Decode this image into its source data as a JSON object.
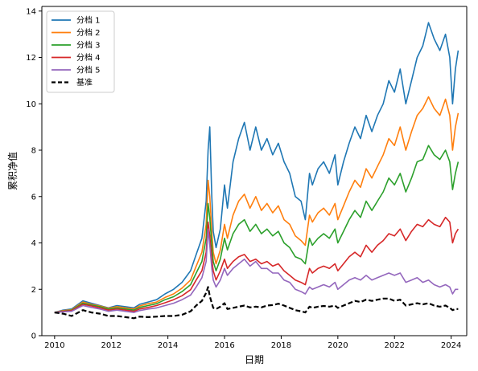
{
  "chart_data": {
    "type": "line",
    "title": "",
    "xlabel": "日期",
    "ylabel": "累积净值",
    "xlim": [
      2009.55,
      2024.55
    ],
    "ylim": [
      0,
      14.2
    ],
    "xticks": [
      2010,
      2012,
      2014,
      2016,
      2018,
      2020,
      2022,
      2024
    ],
    "xtick_labels": [
      "2010",
      "2012",
      "2014",
      "2016",
      "2018",
      "2020",
      "2022",
      "2024"
    ],
    "yticks": [
      0,
      2,
      4,
      6,
      8,
      10,
      12,
      14
    ],
    "ytick_labels": [
      "0",
      "2",
      "4",
      "6",
      "8",
      "10",
      "12",
      "14"
    ],
    "legend": {
      "position": "upper-left"
    },
    "series": [
      {
        "name": "分档 1",
        "color": "#1f77b4",
        "style": "solid",
        "x": [
          2010.0,
          2010.3,
          2010.6,
          2011.0,
          2011.3,
          2011.6,
          2011.9,
          2012.2,
          2012.5,
          2012.8,
          2013.0,
          2013.3,
          2013.6,
          2013.9,
          2014.2,
          2014.5,
          2014.8,
          2015.0,
          2015.2,
          2015.35,
          2015.42,
          2015.48,
          2015.55,
          2015.6,
          2015.7,
          2015.85,
          2016.0,
          2016.1,
          2016.3,
          2016.5,
          2016.7,
          2016.9,
          2017.1,
          2017.3,
          2017.5,
          2017.7,
          2017.9,
          2018.1,
          2018.3,
          2018.5,
          2018.7,
          2018.85,
          2019.0,
          2019.1,
          2019.3,
          2019.5,
          2019.7,
          2019.9,
          2020.0,
          2020.2,
          2020.4,
          2020.6,
          2020.8,
          2021.0,
          2021.2,
          2021.4,
          2021.6,
          2021.8,
          2022.0,
          2022.2,
          2022.4,
          2022.6,
          2022.8,
          2023.0,
          2023.2,
          2023.4,
          2023.6,
          2023.8,
          2023.95,
          2024.05,
          2024.15,
          2024.25
        ],
        "values": [
          1.0,
          1.1,
          1.15,
          1.5,
          1.4,
          1.3,
          1.2,
          1.3,
          1.25,
          1.2,
          1.35,
          1.45,
          1.55,
          1.8,
          2.0,
          2.3,
          2.8,
          3.5,
          4.2,
          5.8,
          8.0,
          9.0,
          6.0,
          4.5,
          3.8,
          4.6,
          6.5,
          5.5,
          7.5,
          8.5,
          9.2,
          8.0,
          9.0,
          8.0,
          8.5,
          7.8,
          8.3,
          7.5,
          7.0,
          6.0,
          5.8,
          5.0,
          7.0,
          6.5,
          7.2,
          7.5,
          7.0,
          7.8,
          6.5,
          7.5,
          8.3,
          9.0,
          8.5,
          9.5,
          8.8,
          9.5,
          10.0,
          11.0,
          10.5,
          11.5,
          10.0,
          11.0,
          12.0,
          12.5,
          13.5,
          12.8,
          12.3,
          13.0,
          12.0,
          10.0,
          11.5,
          12.3
        ]
      },
      {
        "name": "分档 2",
        "color": "#ff7f0e",
        "style": "solid",
        "x": [
          2010.0,
          2010.3,
          2010.6,
          2011.0,
          2011.3,
          2011.6,
          2011.9,
          2012.2,
          2012.5,
          2012.8,
          2013.0,
          2013.3,
          2013.6,
          2013.9,
          2014.2,
          2014.5,
          2014.8,
          2015.0,
          2015.2,
          2015.35,
          2015.42,
          2015.48,
          2015.55,
          2015.6,
          2015.7,
          2015.85,
          2016.0,
          2016.1,
          2016.3,
          2016.5,
          2016.7,
          2016.9,
          2017.1,
          2017.3,
          2017.5,
          2017.7,
          2017.9,
          2018.1,
          2018.3,
          2018.5,
          2018.7,
          2018.85,
          2019.0,
          2019.1,
          2019.3,
          2019.5,
          2019.7,
          2019.9,
          2020.0,
          2020.2,
          2020.4,
          2020.6,
          2020.8,
          2021.0,
          2021.2,
          2021.4,
          2021.6,
          2021.8,
          2022.0,
          2022.2,
          2022.4,
          2022.6,
          2022.8,
          2023.0,
          2023.2,
          2023.4,
          2023.6,
          2023.8,
          2023.95,
          2024.05,
          2024.15,
          2024.25
        ],
        "values": [
          1.0,
          1.08,
          1.12,
          1.45,
          1.35,
          1.28,
          1.18,
          1.25,
          1.2,
          1.15,
          1.28,
          1.38,
          1.45,
          1.65,
          1.8,
          2.05,
          2.4,
          3.0,
          3.6,
          4.8,
          6.7,
          6.0,
          4.5,
          3.6,
          3.1,
          3.7,
          4.8,
          4.2,
          5.2,
          5.8,
          6.1,
          5.5,
          6.0,
          5.4,
          5.7,
          5.3,
          5.6,
          5.0,
          4.8,
          4.3,
          4.1,
          3.9,
          5.2,
          4.9,
          5.3,
          5.5,
          5.2,
          5.7,
          5.0,
          5.6,
          6.2,
          6.7,
          6.4,
          7.2,
          6.8,
          7.3,
          7.8,
          8.5,
          8.2,
          9.0,
          8.0,
          8.8,
          9.5,
          9.8,
          10.3,
          9.8,
          9.5,
          10.2,
          9.5,
          8.0,
          9.0,
          9.6
        ]
      },
      {
        "name": "分档 3",
        "color": "#2ca02c",
        "style": "solid",
        "x": [
          2010.0,
          2010.3,
          2010.6,
          2011.0,
          2011.3,
          2011.6,
          2011.9,
          2012.2,
          2012.5,
          2012.8,
          2013.0,
          2013.3,
          2013.6,
          2013.9,
          2014.2,
          2014.5,
          2014.8,
          2015.0,
          2015.2,
          2015.35,
          2015.42,
          2015.48,
          2015.55,
          2015.6,
          2015.7,
          2015.85,
          2016.0,
          2016.1,
          2016.3,
          2016.5,
          2016.7,
          2016.9,
          2017.1,
          2017.3,
          2017.5,
          2017.7,
          2017.9,
          2018.1,
          2018.3,
          2018.5,
          2018.7,
          2018.85,
          2019.0,
          2019.1,
          2019.3,
          2019.5,
          2019.7,
          2019.9,
          2020.0,
          2020.2,
          2020.4,
          2020.6,
          2020.8,
          2021.0,
          2021.2,
          2021.4,
          2021.6,
          2021.8,
          2022.0,
          2022.2,
          2022.4,
          2022.6,
          2022.8,
          2023.0,
          2023.2,
          2023.4,
          2023.6,
          2023.8,
          2023.95,
          2024.05,
          2024.15,
          2024.25
        ],
        "values": [
          1.0,
          1.06,
          1.1,
          1.4,
          1.32,
          1.25,
          1.15,
          1.2,
          1.15,
          1.1,
          1.22,
          1.3,
          1.38,
          1.55,
          1.68,
          1.9,
          2.2,
          2.7,
          3.2,
          4.2,
          5.7,
          5.1,
          3.9,
          3.2,
          2.8,
          3.3,
          4.2,
          3.7,
          4.4,
          4.8,
          5.0,
          4.5,
          4.8,
          4.4,
          4.6,
          4.3,
          4.5,
          4.0,
          3.8,
          3.4,
          3.3,
          3.1,
          4.2,
          3.9,
          4.2,
          4.4,
          4.2,
          4.6,
          4.0,
          4.5,
          5.0,
          5.4,
          5.1,
          5.8,
          5.4,
          5.8,
          6.2,
          6.8,
          6.5,
          7.0,
          6.2,
          6.8,
          7.5,
          7.6,
          8.2,
          7.8,
          7.6,
          8.0,
          7.5,
          6.3,
          7.0,
          7.5
        ]
      },
      {
        "name": "分档 4",
        "color": "#d62728",
        "style": "solid",
        "x": [
          2010.0,
          2010.3,
          2010.6,
          2011.0,
          2011.3,
          2011.6,
          2011.9,
          2012.2,
          2012.5,
          2012.8,
          2013.0,
          2013.3,
          2013.6,
          2013.9,
          2014.2,
          2014.5,
          2014.8,
          2015.0,
          2015.2,
          2015.35,
          2015.42,
          2015.48,
          2015.55,
          2015.6,
          2015.7,
          2015.85,
          2016.0,
          2016.1,
          2016.3,
          2016.5,
          2016.7,
          2016.9,
          2017.1,
          2017.3,
          2017.5,
          2017.7,
          2017.9,
          2018.1,
          2018.3,
          2018.5,
          2018.7,
          2018.85,
          2019.0,
          2019.1,
          2019.3,
          2019.5,
          2019.7,
          2019.9,
          2020.0,
          2020.2,
          2020.4,
          2020.6,
          2020.8,
          2021.0,
          2021.2,
          2021.4,
          2021.6,
          2021.8,
          2022.0,
          2022.2,
          2022.4,
          2022.6,
          2022.8,
          2023.0,
          2023.2,
          2023.4,
          2023.6,
          2023.8,
          2023.95,
          2024.05,
          2024.15,
          2024.25
        ],
        "values": [
          1.0,
          1.05,
          1.08,
          1.35,
          1.28,
          1.2,
          1.1,
          1.15,
          1.1,
          1.05,
          1.15,
          1.22,
          1.3,
          1.42,
          1.55,
          1.72,
          1.98,
          2.4,
          2.8,
          3.6,
          4.9,
          4.3,
          3.3,
          2.8,
          2.4,
          2.8,
          3.3,
          2.9,
          3.2,
          3.4,
          3.5,
          3.2,
          3.3,
          3.1,
          3.2,
          3.0,
          3.1,
          2.8,
          2.6,
          2.4,
          2.3,
          2.2,
          2.9,
          2.7,
          2.9,
          3.0,
          2.9,
          3.1,
          2.8,
          3.1,
          3.4,
          3.6,
          3.4,
          3.9,
          3.6,
          3.9,
          4.1,
          4.4,
          4.3,
          4.6,
          4.1,
          4.5,
          4.8,
          4.7,
          5.0,
          4.8,
          4.7,
          5.1,
          4.9,
          4.0,
          4.4,
          4.6
        ]
      },
      {
        "name": "分档 5",
        "color": "#9467bd",
        "style": "solid",
        "x": [
          2010.0,
          2010.3,
          2010.6,
          2011.0,
          2011.3,
          2011.6,
          2011.9,
          2012.2,
          2012.5,
          2012.8,
          2013.0,
          2013.3,
          2013.6,
          2013.9,
          2014.2,
          2014.5,
          2014.8,
          2015.0,
          2015.2,
          2015.35,
          2015.42,
          2015.48,
          2015.55,
          2015.6,
          2015.7,
          2015.85,
          2016.0,
          2016.1,
          2016.3,
          2016.5,
          2016.7,
          2016.9,
          2017.1,
          2017.3,
          2017.5,
          2017.7,
          2017.9,
          2018.1,
          2018.3,
          2018.5,
          2018.7,
          2018.85,
          2019.0,
          2019.1,
          2019.3,
          2019.5,
          2019.7,
          2019.9,
          2020.0,
          2020.2,
          2020.4,
          2020.6,
          2020.8,
          2021.0,
          2021.2,
          2021.4,
          2021.6,
          2021.8,
          2022.0,
          2022.2,
          2022.4,
          2022.6,
          2022.8,
          2023.0,
          2023.2,
          2023.4,
          2023.6,
          2023.8,
          2023.95,
          2024.05,
          2024.15,
          2024.25
        ],
        "values": [
          1.0,
          1.03,
          1.05,
          1.3,
          1.22,
          1.15,
          1.05,
          1.1,
          1.05,
          1.0,
          1.08,
          1.15,
          1.2,
          1.3,
          1.4,
          1.55,
          1.75,
          2.1,
          2.5,
          3.2,
          4.6,
          3.9,
          2.9,
          2.4,
          2.1,
          2.4,
          2.9,
          2.6,
          2.9,
          3.1,
          3.3,
          3.0,
          3.2,
          2.9,
          2.9,
          2.7,
          2.7,
          2.4,
          2.3,
          2.0,
          1.9,
          1.8,
          2.1,
          2.0,
          2.1,
          2.2,
          2.1,
          2.3,
          2.0,
          2.2,
          2.4,
          2.5,
          2.4,
          2.6,
          2.4,
          2.5,
          2.6,
          2.7,
          2.6,
          2.7,
          2.3,
          2.4,
          2.5,
          2.3,
          2.4,
          2.2,
          2.1,
          2.2,
          2.1,
          1.8,
          2.0,
          2.0
        ]
      },
      {
        "name": "基准",
        "color": "#000000",
        "style": "dashed",
        "x": [
          2010.0,
          2010.3,
          2010.6,
          2011.0,
          2011.3,
          2011.6,
          2011.9,
          2012.2,
          2012.5,
          2012.8,
          2013.0,
          2013.3,
          2013.6,
          2013.9,
          2014.2,
          2014.5,
          2014.8,
          2015.0,
          2015.2,
          2015.35,
          2015.42,
          2015.48,
          2015.55,
          2015.6,
          2015.7,
          2015.85,
          2016.0,
          2016.1,
          2016.3,
          2016.5,
          2016.7,
          2016.9,
          2017.1,
          2017.3,
          2017.5,
          2017.7,
          2017.9,
          2018.1,
          2018.3,
          2018.5,
          2018.7,
          2018.85,
          2019.0,
          2019.1,
          2019.3,
          2019.5,
          2019.7,
          2019.9,
          2020.0,
          2020.2,
          2020.4,
          2020.6,
          2020.8,
          2021.0,
          2021.2,
          2021.4,
          2021.6,
          2021.8,
          2022.0,
          2022.2,
          2022.4,
          2022.6,
          2022.8,
          2023.0,
          2023.2,
          2023.4,
          2023.6,
          2023.8,
          2023.95,
          2024.05,
          2024.15,
          2024.25
        ],
        "values": [
          1.0,
          0.95,
          0.85,
          1.1,
          1.0,
          0.95,
          0.85,
          0.85,
          0.8,
          0.75,
          0.82,
          0.8,
          0.82,
          0.85,
          0.85,
          0.9,
          1.05,
          1.3,
          1.5,
          1.85,
          2.1,
          1.7,
          1.4,
          1.2,
          1.15,
          1.25,
          1.4,
          1.15,
          1.2,
          1.25,
          1.3,
          1.22,
          1.25,
          1.22,
          1.3,
          1.32,
          1.38,
          1.3,
          1.2,
          1.1,
          1.05,
          1.0,
          1.25,
          1.2,
          1.25,
          1.28,
          1.25,
          1.3,
          1.2,
          1.3,
          1.4,
          1.5,
          1.45,
          1.55,
          1.5,
          1.55,
          1.6,
          1.6,
          1.5,
          1.55,
          1.3,
          1.35,
          1.4,
          1.35,
          1.4,
          1.3,
          1.25,
          1.3,
          1.2,
          1.1,
          1.15,
          1.15
        ]
      }
    ]
  }
}
